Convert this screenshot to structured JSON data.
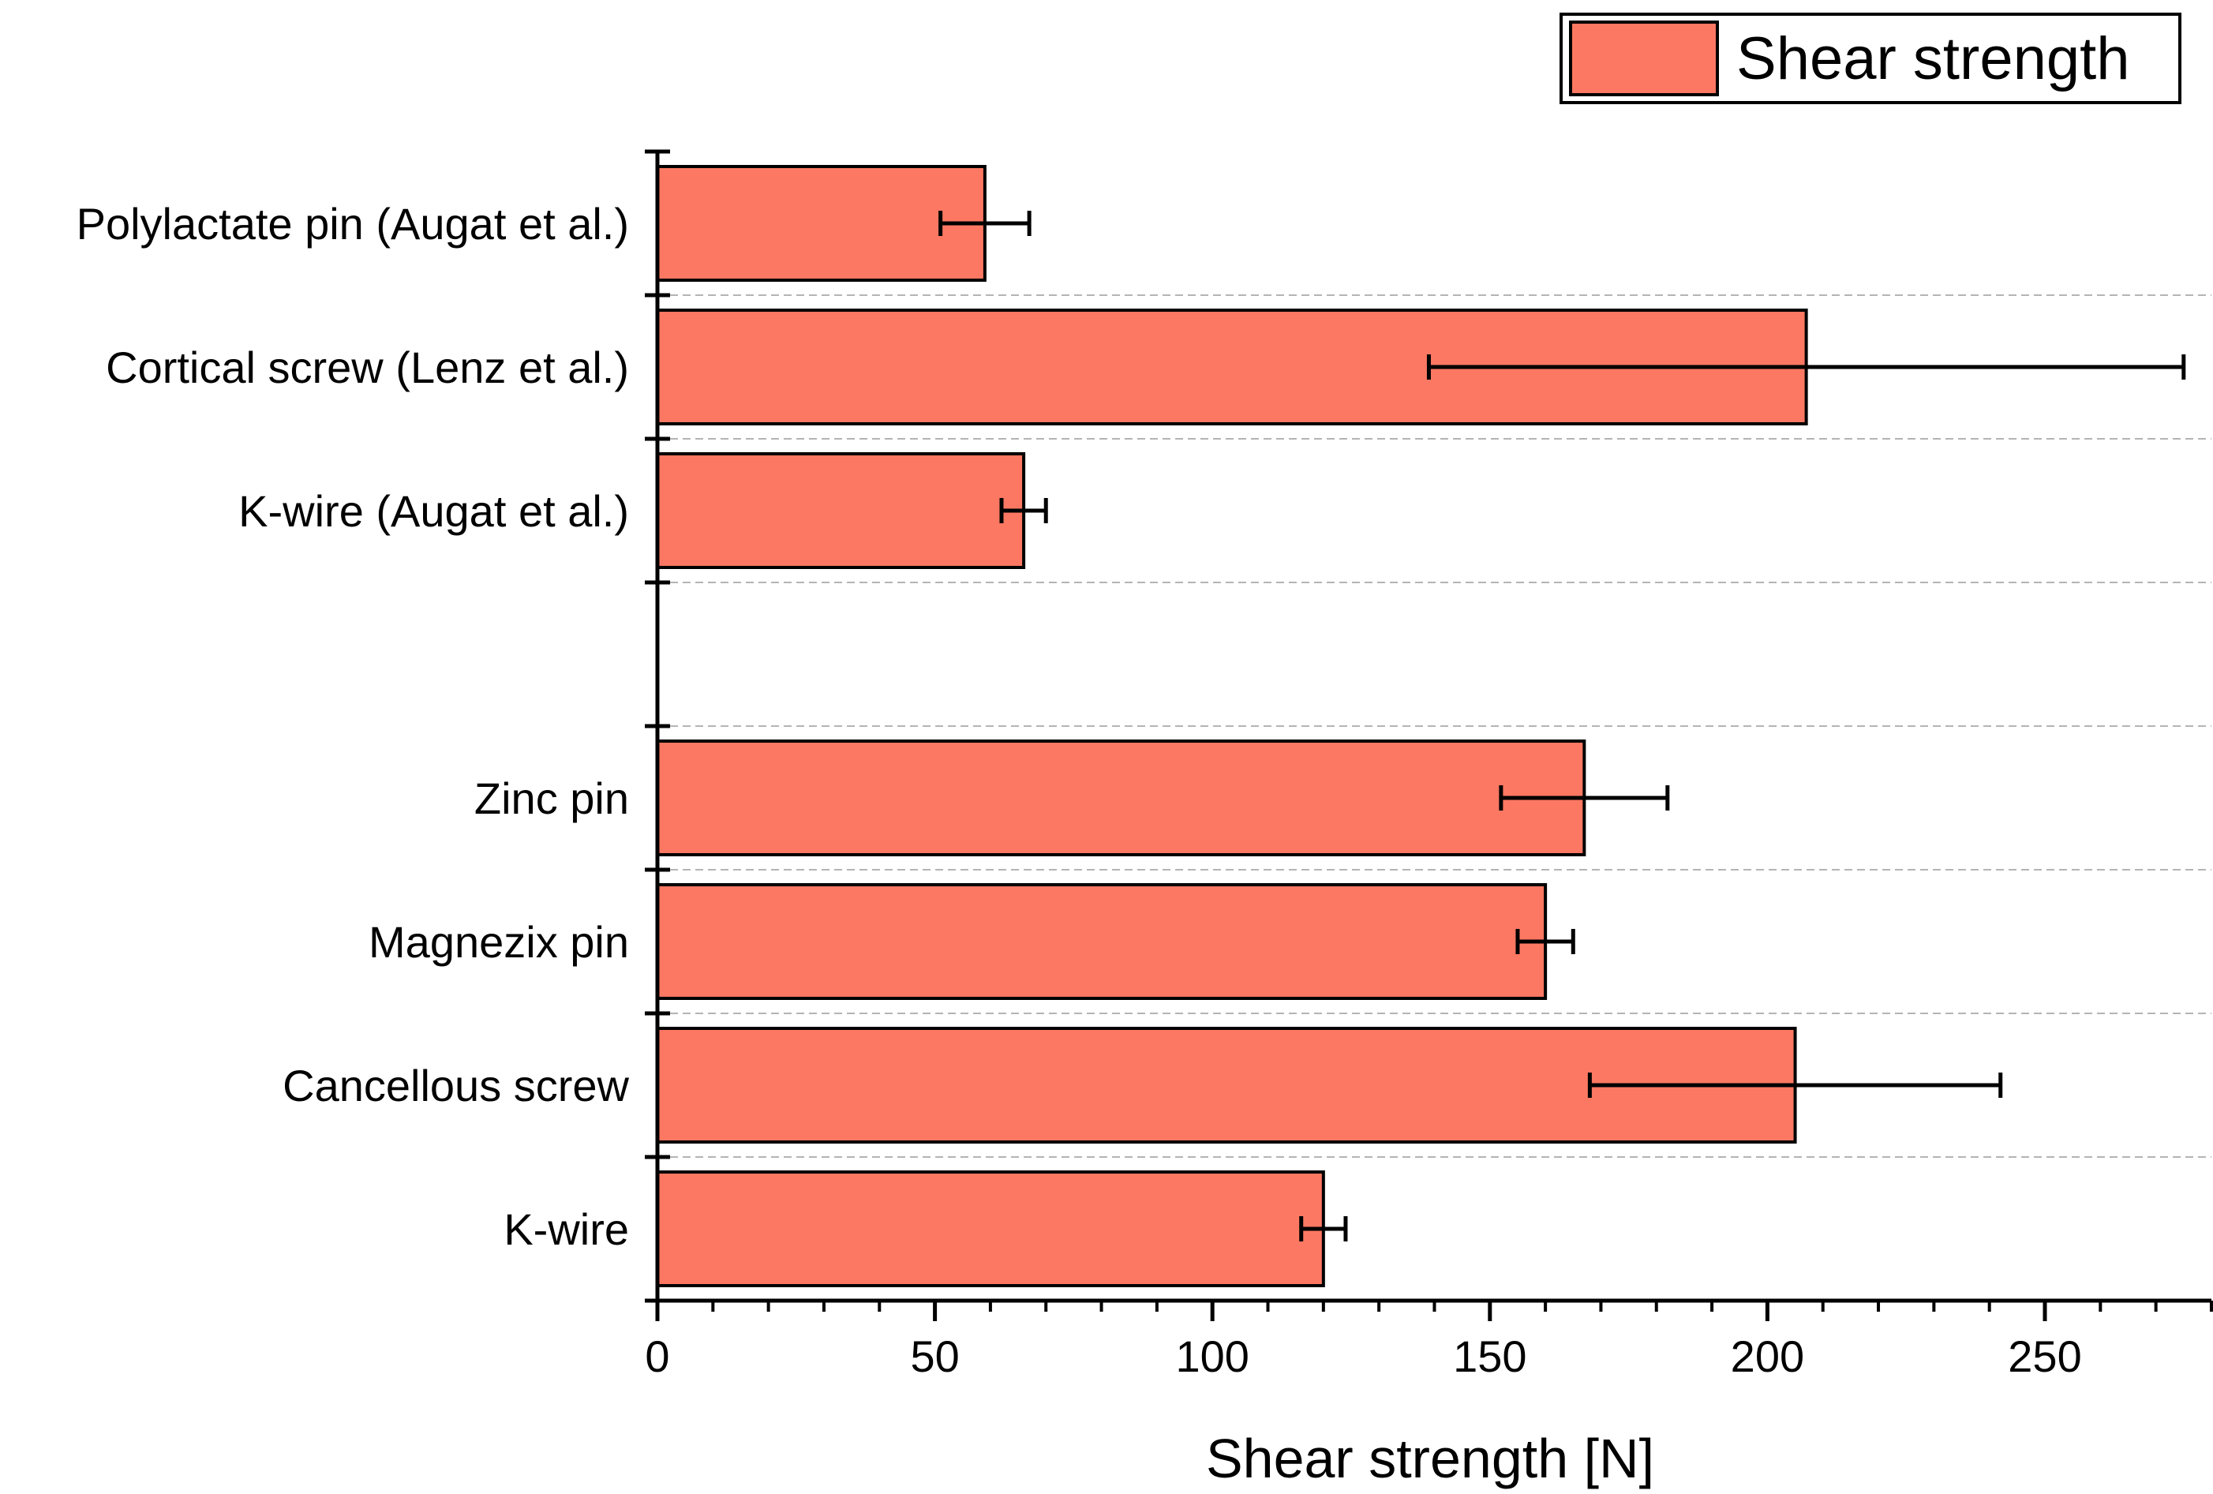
{
  "chart_data": {
    "type": "bar",
    "orientation": "horizontal",
    "title": "",
    "xlabel": "Shear strength [N]",
    "ylabel": "",
    "xlim": [
      0,
      280
    ],
    "x_ticks": [
      0,
      50,
      100,
      150,
      200,
      250
    ],
    "x_tick_labels": [
      "0",
      "50",
      "100",
      "150",
      "200",
      "250"
    ],
    "minor_tick_step": 10,
    "grid": "horizontal dashed separators",
    "legend": {
      "position": "top-right",
      "entries": [
        "Shear strength"
      ]
    },
    "categories": [
      "Polylactate pin (Augat et al.)",
      "Cortical screw (Lenz et al.)",
      "K-wire (Augat et al.)",
      "",
      "Zinc pin",
      "Magnezix pin",
      "Cancellous screw",
      "K-wire"
    ],
    "series": [
      {
        "name": "Shear strength",
        "values": [
          59,
          207,
          66,
          null,
          167,
          160,
          205,
          120
        ],
        "error_low": [
          51,
          139,
          62,
          null,
          152,
          155,
          168,
          116
        ],
        "error_high": [
          67,
          275,
          70,
          null,
          182,
          165,
          242,
          124
        ]
      }
    ],
    "colors": {
      "bar_fill": "#fd7862",
      "bar_edge": "#000000",
      "grid": "#b4b4b4"
    }
  }
}
